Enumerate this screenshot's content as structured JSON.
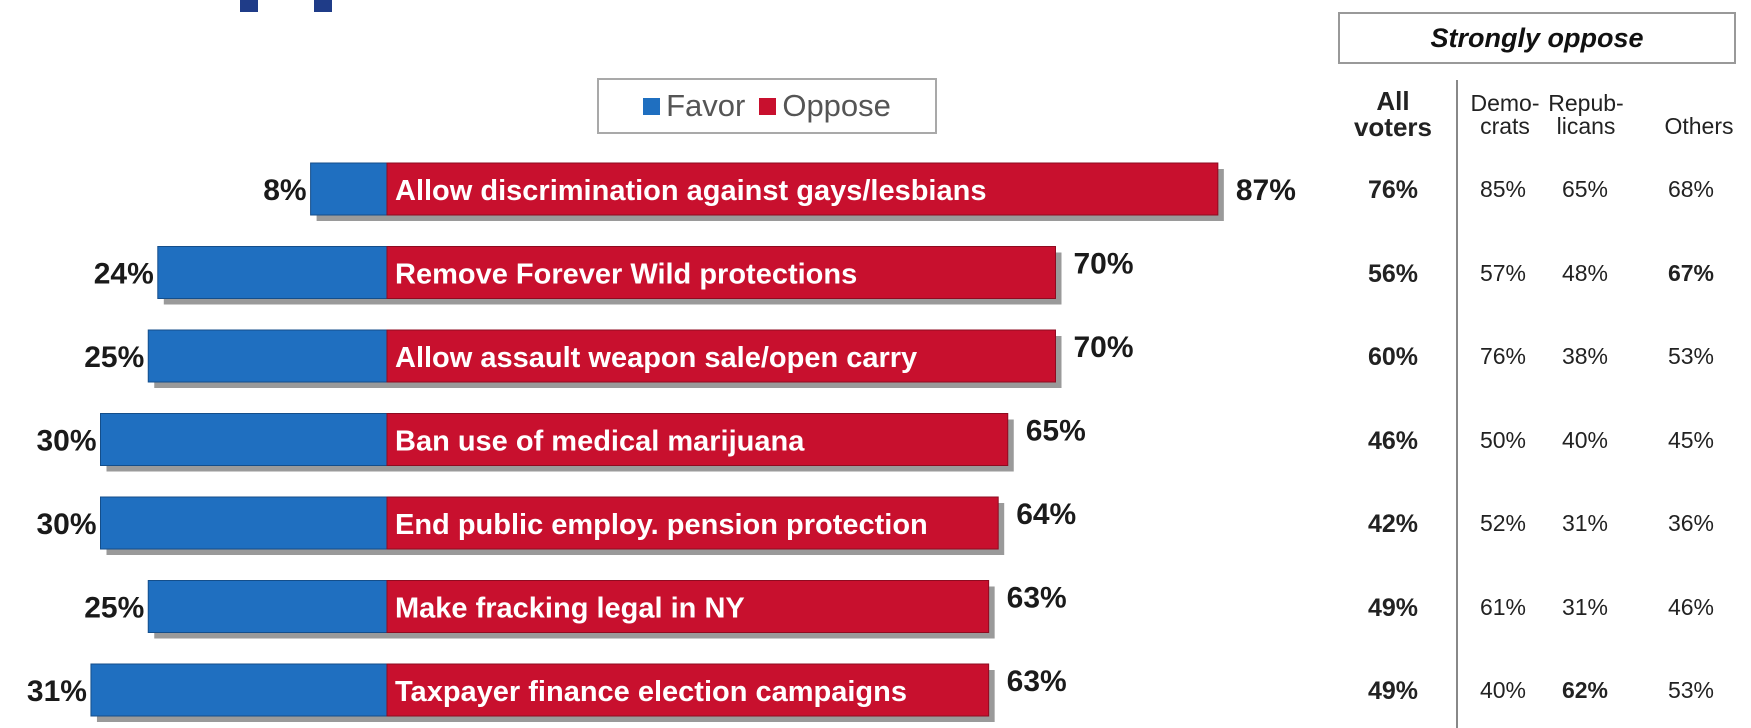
{
  "colors": {
    "favor": "#1f6fc0",
    "oppose": "#c8102e",
    "favor_dark": "#144e8a",
    "oppose_dark": "#8e0b20"
  },
  "legend": {
    "favor_label": "Favor",
    "oppose_label": "Oppose"
  },
  "table": {
    "group_header": "Strongly oppose",
    "columns": [
      {
        "line1": "All",
        "line2": "voters"
      },
      {
        "line1": "Demo-",
        "line2": "crats"
      },
      {
        "line1": "Repub-",
        "line2": "licans"
      },
      {
        "line1": "",
        "line2": "Others"
      }
    ],
    "rows": [
      {
        "cells": [
          "76%",
          "85%",
          "65%",
          "68%"
        ],
        "bold": [
          true,
          false,
          false,
          false
        ]
      },
      {
        "cells": [
          "56%",
          "57%",
          "48%",
          "67%"
        ],
        "bold": [
          true,
          false,
          false,
          true
        ]
      },
      {
        "cells": [
          "60%",
          "76%",
          "38%",
          "53%"
        ],
        "bold": [
          true,
          false,
          false,
          false
        ]
      },
      {
        "cells": [
          "46%",
          "50%",
          "40%",
          "45%"
        ],
        "bold": [
          true,
          false,
          false,
          false
        ]
      },
      {
        "cells": [
          "42%",
          "52%",
          "31%",
          "36%"
        ],
        "bold": [
          true,
          false,
          false,
          false
        ]
      },
      {
        "cells": [
          "49%",
          "61%",
          "31%",
          "46%"
        ],
        "bold": [
          true,
          false,
          false,
          false
        ]
      },
      {
        "cells": [
          "49%",
          "40%",
          "62%",
          "53%"
        ],
        "bold": [
          true,
          false,
          true,
          false
        ]
      }
    ]
  },
  "chart_data": {
    "type": "bar",
    "orientation": "horizontal",
    "stacked": "diverging",
    "categories": [
      "Allow discrimination against gays/lesbians",
      "Remove Forever Wild protections",
      "Allow assault weapon sale/open carry",
      "Ban use of medical marijuana",
      "End public employ. pension protection",
      "Make fracking legal in NY",
      "Taxpayer finance election campaigns"
    ],
    "series": [
      {
        "name": "Favor",
        "values": [
          8,
          24,
          25,
          30,
          30,
          25,
          31
        ]
      },
      {
        "name": "Oppose",
        "values": [
          87,
          70,
          70,
          65,
          64,
          63,
          63
        ]
      }
    ],
    "value_labels": {
      "favor": [
        "8%",
        "24%",
        "25%",
        "30%",
        "30%",
        "25%",
        "31%"
      ],
      "oppose": [
        "87%",
        "70%",
        "70%",
        "65%",
        "64%",
        "63%",
        "63%"
      ]
    },
    "legend_position": "top-center",
    "grid": false
  }
}
